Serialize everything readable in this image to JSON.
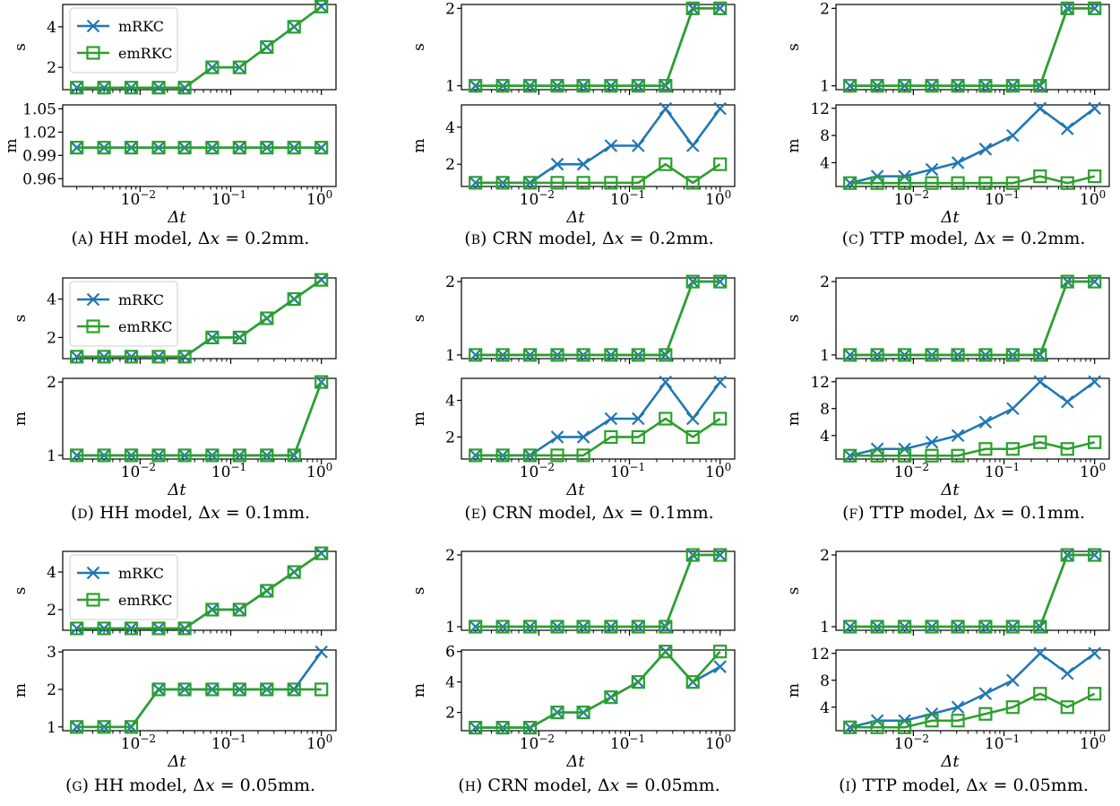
{
  "legend": {
    "labels": [
      "mRKC",
      "emRKC"
    ]
  },
  "colors": {
    "mRKC": "#1f77b4",
    "emRKC": "#2ca02c"
  },
  "x_ticks": [
    "10^-2",
    "10^-1",
    "10^0"
  ],
  "chart_data": [
    {
      "type": "line",
      "title": "(A) HH model, Δx = 0.2mm.",
      "dx": "0.2mm",
      "model": "HH",
      "s": {
        "ylabel": "s",
        "ylim": [
          0.9,
          5.1
        ],
        "yticks": [
          2,
          4
        ],
        "x": [
          0.002,
          0.004,
          0.008,
          0.016,
          0.031,
          0.0625,
          0.125,
          0.25,
          0.5,
          1
        ],
        "series": [
          {
            "name": "mRKC",
            "values": [
              1,
              1,
              1,
              1,
              1,
              2,
              2,
              3,
              4,
              5
            ]
          },
          {
            "name": "emRKC",
            "values": [
              1,
              1,
              1,
              1,
              1,
              2,
              2,
              3,
              4,
              5
            ]
          }
        ]
      },
      "m": {
        "ylabel": "m",
        "xlabel": "Δt",
        "ylim": [
          0.95,
          1.055
        ],
        "yticks": [
          0.96,
          0.99,
          1.02,
          1.05
        ],
        "x": [
          0.002,
          0.004,
          0.008,
          0.016,
          0.031,
          0.0625,
          0.125,
          0.25,
          0.5,
          1
        ],
        "series": [
          {
            "name": "mRKC",
            "values": [
              1,
              1,
              1,
              1,
              1,
              1,
              1,
              1,
              1,
              1
            ]
          },
          {
            "name": "emRKC",
            "values": [
              1,
              1,
              1,
              1,
              1,
              1,
              1,
              1,
              1,
              1
            ]
          }
        ]
      }
    },
    {
      "type": "line",
      "title": "(B) CRN model, Δx = 0.2mm.",
      "dx": "0.2mm",
      "model": "CRN",
      "s": {
        "ylabel": "s",
        "ylim": [
          0.95,
          2.05
        ],
        "yticks": [
          1,
          2
        ],
        "x": [
          0.002,
          0.004,
          0.008,
          0.016,
          0.031,
          0.0625,
          0.125,
          0.25,
          0.5,
          1
        ],
        "series": [
          {
            "name": "mRKC",
            "values": [
              1,
              1,
              1,
              1,
              1,
              1,
              1,
              1,
              2,
              2
            ]
          },
          {
            "name": "emRKC",
            "values": [
              1,
              1,
              1,
              1,
              1,
              1,
              1,
              1,
              2,
              2
            ]
          }
        ]
      },
      "m": {
        "ylabel": "m",
        "xlabel": "Δt",
        "ylim": [
          0.8,
          5.2
        ],
        "yticks": [
          2,
          4
        ],
        "x": [
          0.002,
          0.004,
          0.008,
          0.016,
          0.031,
          0.0625,
          0.125,
          0.25,
          0.5,
          1
        ],
        "series": [
          {
            "name": "mRKC",
            "values": [
              1,
              1,
              1,
              2,
              2,
              3,
              3,
              5,
              3,
              5
            ]
          },
          {
            "name": "emRKC",
            "values": [
              1,
              1,
              1,
              1,
              1,
              1,
              1,
              2,
              1,
              2
            ]
          }
        ]
      }
    },
    {
      "type": "line",
      "title": "(C) TTP model, Δx = 0.2mm.",
      "dx": "0.2mm",
      "model": "TTP",
      "s": {
        "ylabel": "s",
        "ylim": [
          0.95,
          2.05
        ],
        "yticks": [
          1,
          2
        ],
        "x": [
          0.002,
          0.004,
          0.008,
          0.016,
          0.031,
          0.0625,
          0.125,
          0.25,
          0.5,
          1
        ],
        "series": [
          {
            "name": "mRKC",
            "values": [
              1,
              1,
              1,
              1,
              1,
              1,
              1,
              1,
              2,
              2
            ]
          },
          {
            "name": "emRKC",
            "values": [
              1,
              1,
              1,
              1,
              1,
              1,
              1,
              1,
              2,
              2
            ]
          }
        ]
      },
      "m": {
        "ylabel": "m",
        "xlabel": "Δt",
        "ylim": [
          0.5,
          12.5
        ],
        "yticks": [
          4,
          8,
          12
        ],
        "x": [
          0.002,
          0.004,
          0.008,
          0.016,
          0.031,
          0.0625,
          0.125,
          0.25,
          0.5,
          1
        ],
        "series": [
          {
            "name": "mRKC",
            "values": [
              1,
              2,
              2,
              3,
              4,
              6,
              8,
              12,
              9,
              12
            ]
          },
          {
            "name": "emRKC",
            "values": [
              1,
              1,
              1,
              1,
              1,
              1,
              1,
              2,
              1,
              2
            ]
          }
        ]
      }
    },
    {
      "type": "line",
      "title": "(D) HH model, Δx = 0.1mm.",
      "dx": "0.1mm",
      "model": "HH",
      "s": {
        "ylabel": "s",
        "ylim": [
          0.9,
          5.1
        ],
        "yticks": [
          2,
          4
        ],
        "x": [
          0.002,
          0.004,
          0.008,
          0.016,
          0.031,
          0.0625,
          0.125,
          0.25,
          0.5,
          1
        ],
        "series": [
          {
            "name": "mRKC",
            "values": [
              1,
              1,
              1,
              1,
              1,
              2,
              2,
              3,
              4,
              5
            ]
          },
          {
            "name": "emRKC",
            "values": [
              1,
              1,
              1,
              1,
              1,
              2,
              2,
              3,
              4,
              5
            ]
          }
        ]
      },
      "m": {
        "ylabel": "m",
        "xlabel": "Δt",
        "ylim": [
          0.95,
          2.05
        ],
        "yticks": [
          1,
          2
        ],
        "x": [
          0.002,
          0.004,
          0.008,
          0.016,
          0.031,
          0.0625,
          0.125,
          0.25,
          0.5,
          1
        ],
        "series": [
          {
            "name": "mRKC",
            "values": [
              1,
              1,
              1,
              1,
              1,
              1,
              1,
              1,
              1,
              2
            ]
          },
          {
            "name": "emRKC",
            "values": [
              1,
              1,
              1,
              1,
              1,
              1,
              1,
              1,
              1,
              2
            ]
          }
        ]
      }
    },
    {
      "type": "line",
      "title": "(E) CRN model, Δx = 0.1mm.",
      "dx": "0.1mm",
      "model": "CRN",
      "s": {
        "ylabel": "s",
        "ylim": [
          0.95,
          2.05
        ],
        "yticks": [
          1,
          2
        ],
        "x": [
          0.002,
          0.004,
          0.008,
          0.016,
          0.031,
          0.0625,
          0.125,
          0.25,
          0.5,
          1
        ],
        "series": [
          {
            "name": "mRKC",
            "values": [
              1,
              1,
              1,
              1,
              1,
              1,
              1,
              1,
              2,
              2
            ]
          },
          {
            "name": "emRKC",
            "values": [
              1,
              1,
              1,
              1,
              1,
              1,
              1,
              1,
              2,
              2
            ]
          }
        ]
      },
      "m": {
        "ylabel": "m",
        "xlabel": "Δt",
        "ylim": [
          0.8,
          5.2
        ],
        "yticks": [
          2,
          4
        ],
        "x": [
          0.002,
          0.004,
          0.008,
          0.016,
          0.031,
          0.0625,
          0.125,
          0.25,
          0.5,
          1
        ],
        "series": [
          {
            "name": "mRKC",
            "values": [
              1,
              1,
              1,
              2,
              2,
              3,
              3,
              5,
              3,
              5
            ]
          },
          {
            "name": "emRKC",
            "values": [
              1,
              1,
              1,
              1,
              1,
              2,
              2,
              3,
              2,
              3
            ]
          }
        ]
      }
    },
    {
      "type": "line",
      "title": "(F) TTP model, Δx = 0.1mm.",
      "dx": "0.1mm",
      "model": "TTP",
      "s": {
        "ylabel": "s",
        "ylim": [
          0.95,
          2.05
        ],
        "yticks": [
          1,
          2
        ],
        "x": [
          0.002,
          0.004,
          0.008,
          0.016,
          0.031,
          0.0625,
          0.125,
          0.25,
          0.5,
          1
        ],
        "series": [
          {
            "name": "mRKC",
            "values": [
              1,
              1,
              1,
              1,
              1,
              1,
              1,
              1,
              2,
              2
            ]
          },
          {
            "name": "emRKC",
            "values": [
              1,
              1,
              1,
              1,
              1,
              1,
              1,
              1,
              2,
              2
            ]
          }
        ]
      },
      "m": {
        "ylabel": "m",
        "xlabel": "Δt",
        "ylim": [
          0.5,
          12.5
        ],
        "yticks": [
          4,
          8,
          12
        ],
        "x": [
          0.002,
          0.004,
          0.008,
          0.016,
          0.031,
          0.0625,
          0.125,
          0.25,
          0.5,
          1
        ],
        "series": [
          {
            "name": "mRKC",
            "values": [
              1,
              2,
              2,
              3,
              4,
              6,
              8,
              12,
              9,
              12
            ]
          },
          {
            "name": "emRKC",
            "values": [
              1,
              1,
              1,
              1,
              1,
              2,
              2,
              3,
              2,
              3
            ]
          }
        ]
      }
    },
    {
      "type": "line",
      "title": "(G) HH model, Δx = 0.05mm.",
      "dx": "0.05mm",
      "model": "HH",
      "s": {
        "ylabel": "s",
        "ylim": [
          0.9,
          5.1
        ],
        "yticks": [
          2,
          4
        ],
        "x": [
          0.002,
          0.004,
          0.008,
          0.016,
          0.031,
          0.0625,
          0.125,
          0.25,
          0.5,
          1
        ],
        "series": [
          {
            "name": "mRKC",
            "values": [
              1,
              1,
              1,
              1,
              1,
              2,
              2,
              3,
              4,
              5
            ]
          },
          {
            "name": "emRKC",
            "values": [
              1,
              1,
              1,
              1,
              1,
              2,
              2,
              3,
              4,
              5
            ]
          }
        ]
      },
      "m": {
        "ylabel": "m",
        "xlabel": "Δt",
        "ylim": [
          0.9,
          3.05
        ],
        "yticks": [
          1,
          2,
          3
        ],
        "x": [
          0.002,
          0.004,
          0.008,
          0.016,
          0.031,
          0.0625,
          0.125,
          0.25,
          0.5,
          1
        ],
        "series": [
          {
            "name": "mRKC",
            "values": [
              1,
              1,
              1,
              2,
              2,
              2,
              2,
              2,
              2,
              3
            ]
          },
          {
            "name": "emRKC",
            "values": [
              1,
              1,
              1,
              2,
              2,
              2,
              2,
              2,
              2,
              2
            ]
          }
        ]
      }
    },
    {
      "type": "line",
      "title": "(H) CRN model, Δx = 0.05mm.",
      "dx": "0.05mm",
      "model": "CRN",
      "s": {
        "ylabel": "s",
        "ylim": [
          0.95,
          2.05
        ],
        "yticks": [
          1,
          2
        ],
        "x": [
          0.002,
          0.004,
          0.008,
          0.016,
          0.031,
          0.0625,
          0.125,
          0.25,
          0.5,
          1
        ],
        "series": [
          {
            "name": "mRKC",
            "values": [
              1,
              1,
              1,
              1,
              1,
              1,
              1,
              1,
              2,
              2
            ]
          },
          {
            "name": "emRKC",
            "values": [
              1,
              1,
              1,
              1,
              1,
              1,
              1,
              1,
              2,
              2
            ]
          }
        ]
      },
      "m": {
        "ylabel": "m",
        "xlabel": "Δt",
        "ylim": [
          0.8,
          6.1
        ],
        "yticks": [
          2,
          4,
          6
        ],
        "x": [
          0.002,
          0.004,
          0.008,
          0.016,
          0.031,
          0.0625,
          0.125,
          0.25,
          0.5,
          1
        ],
        "series": [
          {
            "name": "mRKC",
            "values": [
              1,
              1,
              1,
              2,
              2,
              3,
              4,
              6,
              4,
              5
            ]
          },
          {
            "name": "emRKC",
            "values": [
              1,
              1,
              1,
              2,
              2,
              3,
              4,
              6,
              4,
              6
            ]
          }
        ]
      }
    },
    {
      "type": "line",
      "title": "(I) TTP model, Δx = 0.05mm.",
      "dx": "0.05mm",
      "model": "TTP",
      "s": {
        "ylabel": "s",
        "ylim": [
          0.95,
          2.05
        ],
        "yticks": [
          1,
          2
        ],
        "x": [
          0.002,
          0.004,
          0.008,
          0.016,
          0.031,
          0.0625,
          0.125,
          0.25,
          0.5,
          1
        ],
        "series": [
          {
            "name": "mRKC",
            "values": [
              1,
              1,
              1,
              1,
              1,
              1,
              1,
              1,
              2,
              2
            ]
          },
          {
            "name": "emRKC",
            "values": [
              1,
              1,
              1,
              1,
              1,
              1,
              1,
              1,
              2,
              2
            ]
          }
        ]
      },
      "m": {
        "ylabel": "m",
        "xlabel": "Δt",
        "ylim": [
          0.5,
          12.5
        ],
        "yticks": [
          4,
          8,
          12
        ],
        "x": [
          0.002,
          0.004,
          0.008,
          0.016,
          0.031,
          0.0625,
          0.125,
          0.25,
          0.5,
          1
        ],
        "series": [
          {
            "name": "mRKC",
            "values": [
              1,
              2,
              2,
              3,
              4,
              6,
              8,
              12,
              9,
              12
            ]
          },
          {
            "name": "emRKC",
            "values": [
              1,
              1,
              1,
              2,
              2,
              3,
              4,
              6,
              4,
              6
            ]
          }
        ]
      }
    }
  ]
}
